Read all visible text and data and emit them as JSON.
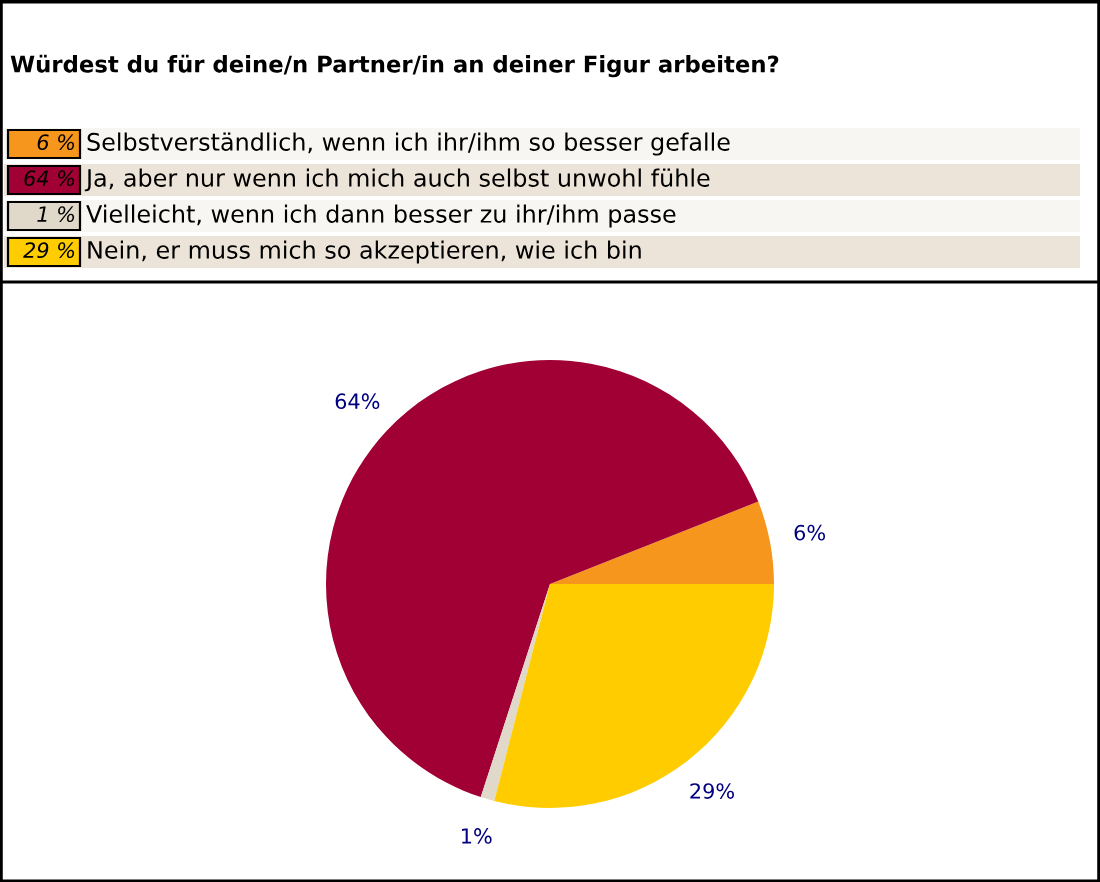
{
  "chart_data": {
    "type": "pie",
    "title": "Würdest du für deine/n Partner/in an deiner Figur arbeiten?",
    "categories": [
      "Selbstverständlich, wenn ich ihr/ihm so besser gefalle",
      "Ja, aber nur wenn ich mich auch selbst unwohl fühle",
      "Vielleicht, wenn ich dann besser zu ihr/ihm passe",
      "Nein, er muss mich so akzeptieren, wie ich bin"
    ],
    "values": [
      6,
      64,
      1,
      29
    ],
    "colors": [
      "#f7961d",
      "#a00033",
      "#e0d8c8",
      "#ffcc00"
    ],
    "value_labels": [
      "6%",
      "64%",
      "1%",
      "29%"
    ],
    "annotations": [
      "6 %",
      "64 %",
      "1 %",
      "29 %"
    ],
    "legend": "top"
  }
}
